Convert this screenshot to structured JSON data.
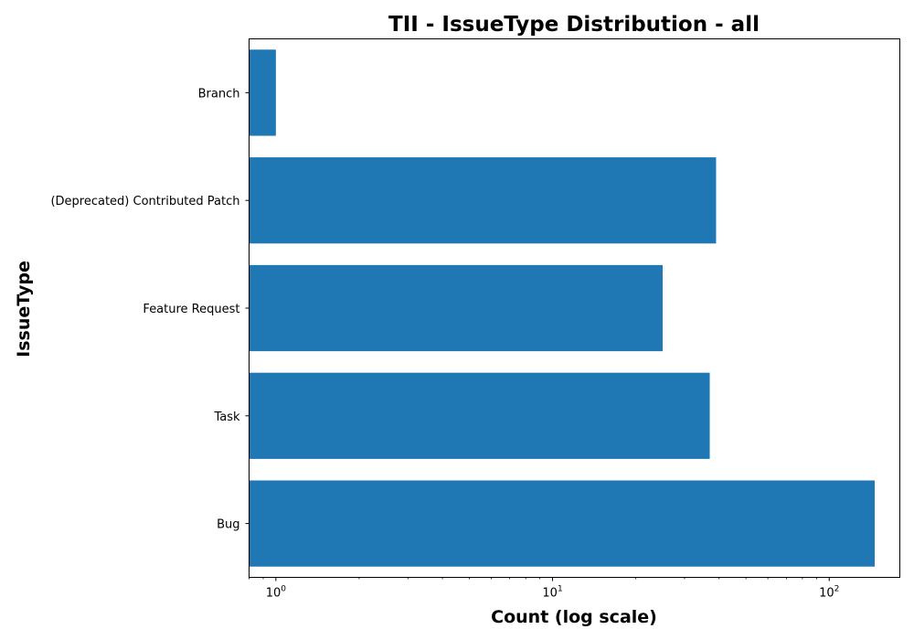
{
  "chart_data": {
    "type": "bar",
    "orientation": "horizontal",
    "title": "TII - IssueType Distribution - all",
    "xlabel": "Count (log scale)",
    "ylabel": "IssueType",
    "x_scale": "log",
    "xlim": [
      0.8,
      180
    ],
    "x_ticks": [
      {
        "value": 1,
        "base": "10",
        "exponent": "0"
      },
      {
        "value": 10,
        "base": "10",
        "exponent": "1"
      },
      {
        "value": 100,
        "base": "10",
        "exponent": "2"
      }
    ],
    "categories": [
      "Branch",
      "(Deprecated) Contributed Patch",
      "Feature Request",
      "Task",
      "Bug"
    ],
    "values": [
      1,
      39,
      25,
      37,
      146
    ],
    "bar_color": "#1f77b4",
    "grid": false,
    "legend": "none"
  }
}
